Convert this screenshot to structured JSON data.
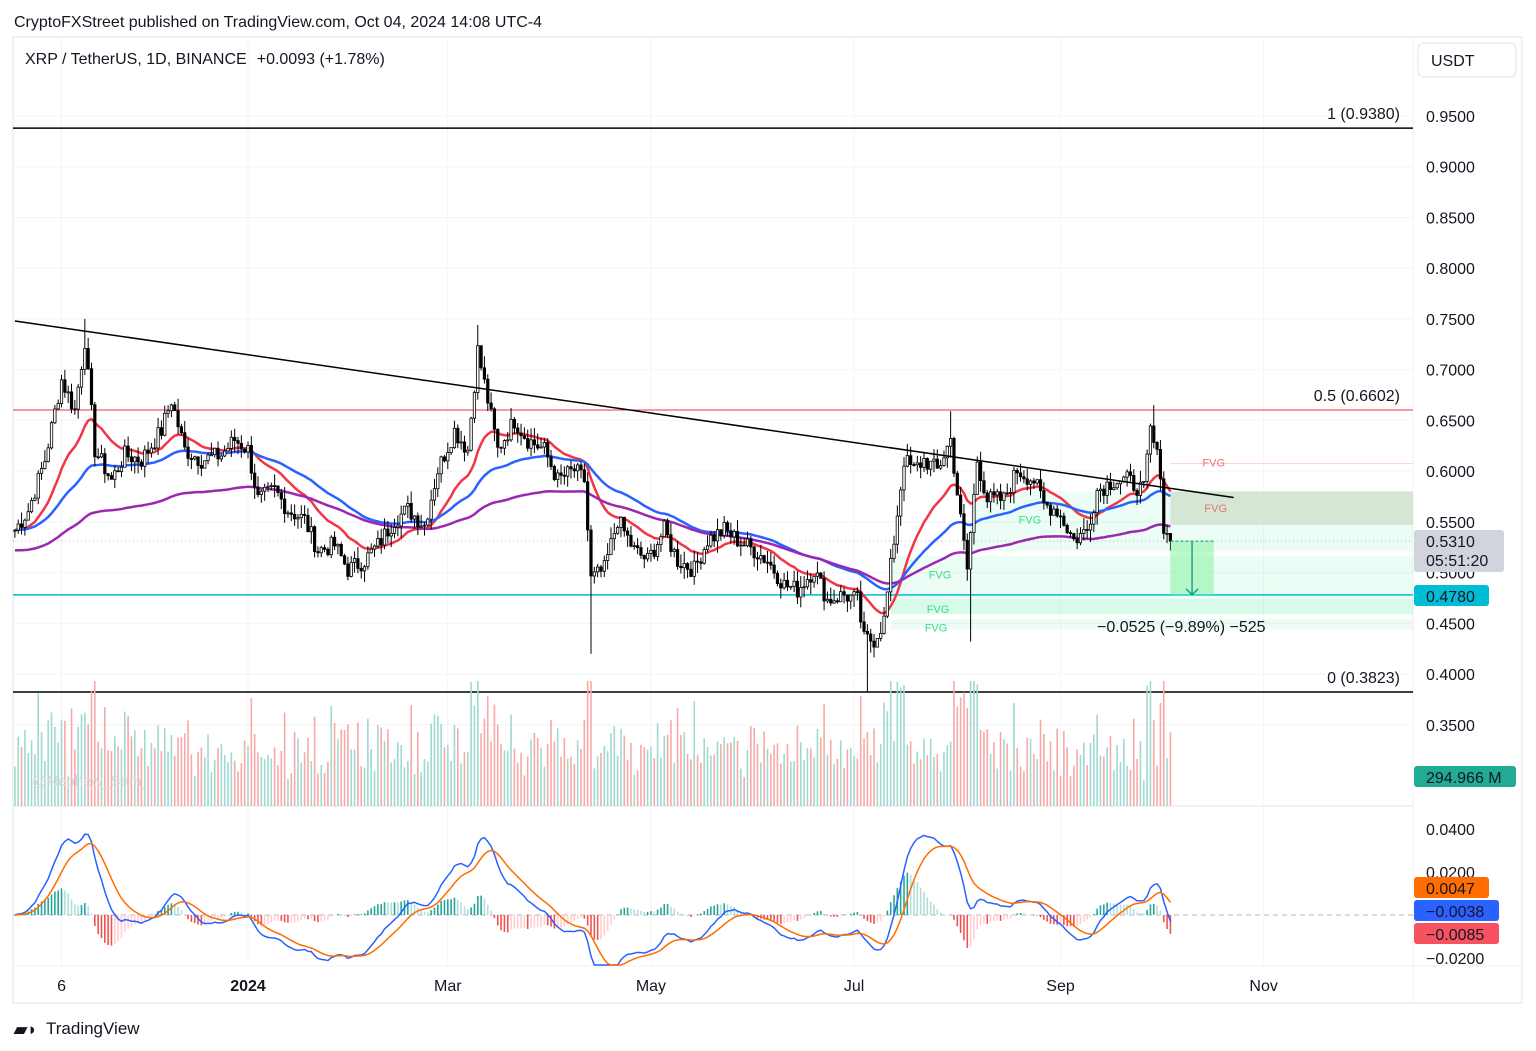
{
  "header": {
    "published": "CryptoFXStreet published on TradingView.com, Oct 04, 2024 14:08 UTC-4",
    "symbol_line": "XRP / TetherUS, 1D, BINANCE",
    "change": "+0.0093 (+1.78%)"
  },
  "currency_button": "USDT",
  "watermark": "@Nephew_Sam_",
  "footer": {
    "logo_text": "TradingView"
  },
  "colors": {
    "candle": "#000000",
    "ema_fast": "#f23645",
    "ema_mid": "#2962ff",
    "ema_slow": "#9c27b0",
    "fib_mid": "#f23645",
    "support": "#00bcd4",
    "macd": "#2962ff",
    "signal": "#ff6d00",
    "hist_up": "#26a69a",
    "hist_down": "#ef5350",
    "fvg_bull": "#00e676",
    "fvg_bear": "#f23645"
  },
  "chart_data": {
    "type": "candlestick",
    "title": "XRP / TetherUS, 1D, BINANCE",
    "closes": [
      [
        "2023-10-23",
        0.542
      ],
      [
        "2023-10-27",
        0.561
      ],
      [
        "2023-11-01",
        0.611
      ],
      [
        "2023-11-06",
        0.69
      ],
      [
        "2023-11-10",
        0.66
      ],
      [
        "2023-11-13",
        0.729
      ],
      [
        "2023-11-16",
        0.621
      ],
      [
        "2023-11-21",
        0.591
      ],
      [
        "2023-11-25",
        0.616
      ],
      [
        "2023-11-30",
        0.611
      ],
      [
        "2023-12-06",
        0.64
      ],
      [
        "2023-12-09",
        0.67
      ],
      [
        "2023-12-13",
        0.621
      ],
      [
        "2023-12-18",
        0.611
      ],
      [
        "2023-12-24",
        0.616
      ],
      [
        "2023-12-28",
        0.631
      ],
      [
        "2024-01-01",
        0.621
      ],
      [
        "2024-01-04",
        0.572
      ],
      [
        "2024-01-09",
        0.581
      ],
      [
        "2024-01-13",
        0.562
      ],
      [
        "2024-01-18",
        0.552
      ],
      [
        "2024-01-22",
        0.522
      ],
      [
        "2024-01-27",
        0.527
      ],
      [
        "2024-01-31",
        0.503
      ],
      [
        "2024-02-05",
        0.512
      ],
      [
        "2024-02-09",
        0.527
      ],
      [
        "2024-02-14",
        0.552
      ],
      [
        "2024-02-18",
        0.562
      ],
      [
        "2024-02-23",
        0.547
      ],
      [
        "2024-02-27",
        0.601
      ],
      [
        "2024-03-03",
        0.64
      ],
      [
        "2024-03-07",
        0.621
      ],
      [
        "2024-03-10",
        0.719
      ],
      [
        "2024-03-13",
        0.67
      ],
      [
        "2024-03-16",
        0.621
      ],
      [
        "2024-03-21",
        0.65
      ],
      [
        "2024-03-25",
        0.631
      ],
      [
        "2024-03-30",
        0.621
      ],
      [
        "2024-04-03",
        0.591
      ],
      [
        "2024-04-08",
        0.601
      ],
      [
        "2024-04-11",
        0.591
      ],
      [
        "2024-04-13",
        0.493
      ],
      [
        "2024-04-17",
        0.503
      ],
      [
        "2024-04-21",
        0.552
      ],
      [
        "2024-04-26",
        0.522
      ],
      [
        "2024-04-30",
        0.512
      ],
      [
        "2024-05-05",
        0.542
      ],
      [
        "2024-05-09",
        0.512
      ],
      [
        "2024-05-14",
        0.503
      ],
      [
        "2024-05-18",
        0.532
      ],
      [
        "2024-05-23",
        0.542
      ],
      [
        "2024-05-27",
        0.532
      ],
      [
        "2024-06-01",
        0.522
      ],
      [
        "2024-06-05",
        0.512
      ],
      [
        "2024-06-10",
        0.488
      ],
      [
        "2024-06-14",
        0.483
      ],
      [
        "2024-06-19",
        0.503
      ],
      [
        "2024-06-23",
        0.473
      ],
      [
        "2024-06-28",
        0.478
      ],
      [
        "2024-07-02",
        0.473
      ],
      [
        "2024-07-04",
        0.434
      ],
      [
        "2024-07-07",
        0.434
      ],
      [
        "2024-07-10",
        0.453
      ],
      [
        "2024-07-13",
        0.532
      ],
      [
        "2024-07-16",
        0.611
      ],
      [
        "2024-07-19",
        0.601
      ],
      [
        "2024-07-22",
        0.611
      ],
      [
        "2024-07-26",
        0.601
      ],
      [
        "2024-07-30",
        0.631
      ],
      [
        "2024-08-02",
        0.552
      ],
      [
        "2024-08-04",
        0.503
      ],
      [
        "2024-08-07",
        0.611
      ],
      [
        "2024-08-10",
        0.572
      ],
      [
        "2024-08-15",
        0.572
      ],
      [
        "2024-08-19",
        0.601
      ],
      [
        "2024-08-24",
        0.591
      ],
      [
        "2024-08-27",
        0.567
      ],
      [
        "2024-08-31",
        0.562
      ],
      [
        "2024-09-05",
        0.532
      ],
      [
        "2024-09-09",
        0.542
      ],
      [
        "2024-09-12",
        0.581
      ],
      [
        "2024-09-17",
        0.591
      ],
      [
        "2024-09-21",
        0.591
      ],
      [
        "2024-09-26",
        0.581
      ],
      [
        "2024-09-28",
        0.64
      ],
      [
        "2024-10-01",
        0.601
      ],
      [
        "2024-10-02",
        0.542
      ],
      [
        "2024-10-04",
        0.531
      ]
    ],
    "extremes": [
      {
        "date": "2023-11-13",
        "high": 0.75
      },
      {
        "date": "2024-03-10",
        "high": 0.744
      },
      {
        "date": "2024-04-13",
        "low": 0.42
      },
      {
        "date": "2024-07-05",
        "low": 0.3823
      },
      {
        "date": "2024-07-30",
        "high": 0.659
      },
      {
        "date": "2024-08-05",
        "low": 0.432
      },
      {
        "date": "2024-09-29",
        "high": 0.665
      }
    ],
    "moving_averages": [
      {
        "color": "#f23645",
        "period": 20
      },
      {
        "color": "#2962ff",
        "period": 50
      },
      {
        "color": "#9c27b0",
        "period": 100
      }
    ],
    "price_axis": {
      "ticks": [
        "0.9500",
        "0.9000",
        "0.8500",
        "0.8000",
        "0.7500",
        "0.7000",
        "0.6500",
        "0.6000",
        "0.5500",
        "0.5000",
        "0.4500",
        "0.4000",
        "0.3500"
      ],
      "range": [
        0.33,
        0.99
      ]
    },
    "time_axis": {
      "ticks": [
        {
          "date": "2023-11-06",
          "label": "6"
        },
        {
          "date": "2024-01-01",
          "label": "2024"
        },
        {
          "date": "2024-03-01",
          "label": "Mar"
        },
        {
          "date": "2024-05-01",
          "label": "May"
        },
        {
          "date": "2024-07-01",
          "label": "Jul"
        },
        {
          "date": "2024-09-01",
          "label": "Sep"
        },
        {
          "date": "2024-11-01",
          "label": "Nov"
        }
      ]
    },
    "fib_levels": [
      {
        "label": "1 (0.9380)",
        "price": 0.938
      },
      {
        "label": "0.5 (0.6602)",
        "price": 0.6602
      },
      {
        "label": "0 (0.3823)",
        "price": 0.3823
      }
    ],
    "support_line": {
      "price": 0.478,
      "label": "0.4780"
    },
    "trendline": [
      [
        "2023-10-23",
        0.748
      ],
      [
        "2024-10-23",
        0.574
      ]
    ],
    "fvg_zones": [
      {
        "type": "bearish",
        "from": "2024-10-04",
        "top": 0.58,
        "bottom": 0.547,
        "label": "FVG"
      },
      {
        "type": "bearish_line",
        "from": "2024-10-04",
        "price": 0.6075,
        "label": "FVG"
      },
      {
        "type": "bullish",
        "from": "2024-08-05",
        "top": 0.58,
        "bottom": 0.521,
        "label": "FVG"
      },
      {
        "type": "bullish",
        "from": "2024-07-12",
        "top": 0.516,
        "bottom": 0.459,
        "label": "FVG"
      },
      {
        "type": "bullish",
        "from": "2024-07-12",
        "top": 0.474,
        "bottom": 0.459,
        "label": "FVG"
      },
      {
        "type": "bullish",
        "from": "2024-07-12",
        "top": 0.454,
        "bottom": 0.444,
        "label": "FVG"
      }
    ],
    "measure": {
      "from": "2024-10-04",
      "to": "2024-10-17",
      "start": 0.531,
      "end": 0.478,
      "label": "−0.0525 (−9.89%) −525"
    },
    "last_price": {
      "value": "0.5310",
      "countdown": "05:51:20"
    },
    "volume_label": "294.966 M",
    "macd_axis": {
      "ticks": [
        "0.0400",
        "0.0200",
        "−0.0200"
      ],
      "range": [
        -0.023,
        0.045
      ]
    },
    "macd_labels": {
      "signal": "0.0047",
      "macd": "−0.0038",
      "histogram": "−0.0085"
    }
  }
}
